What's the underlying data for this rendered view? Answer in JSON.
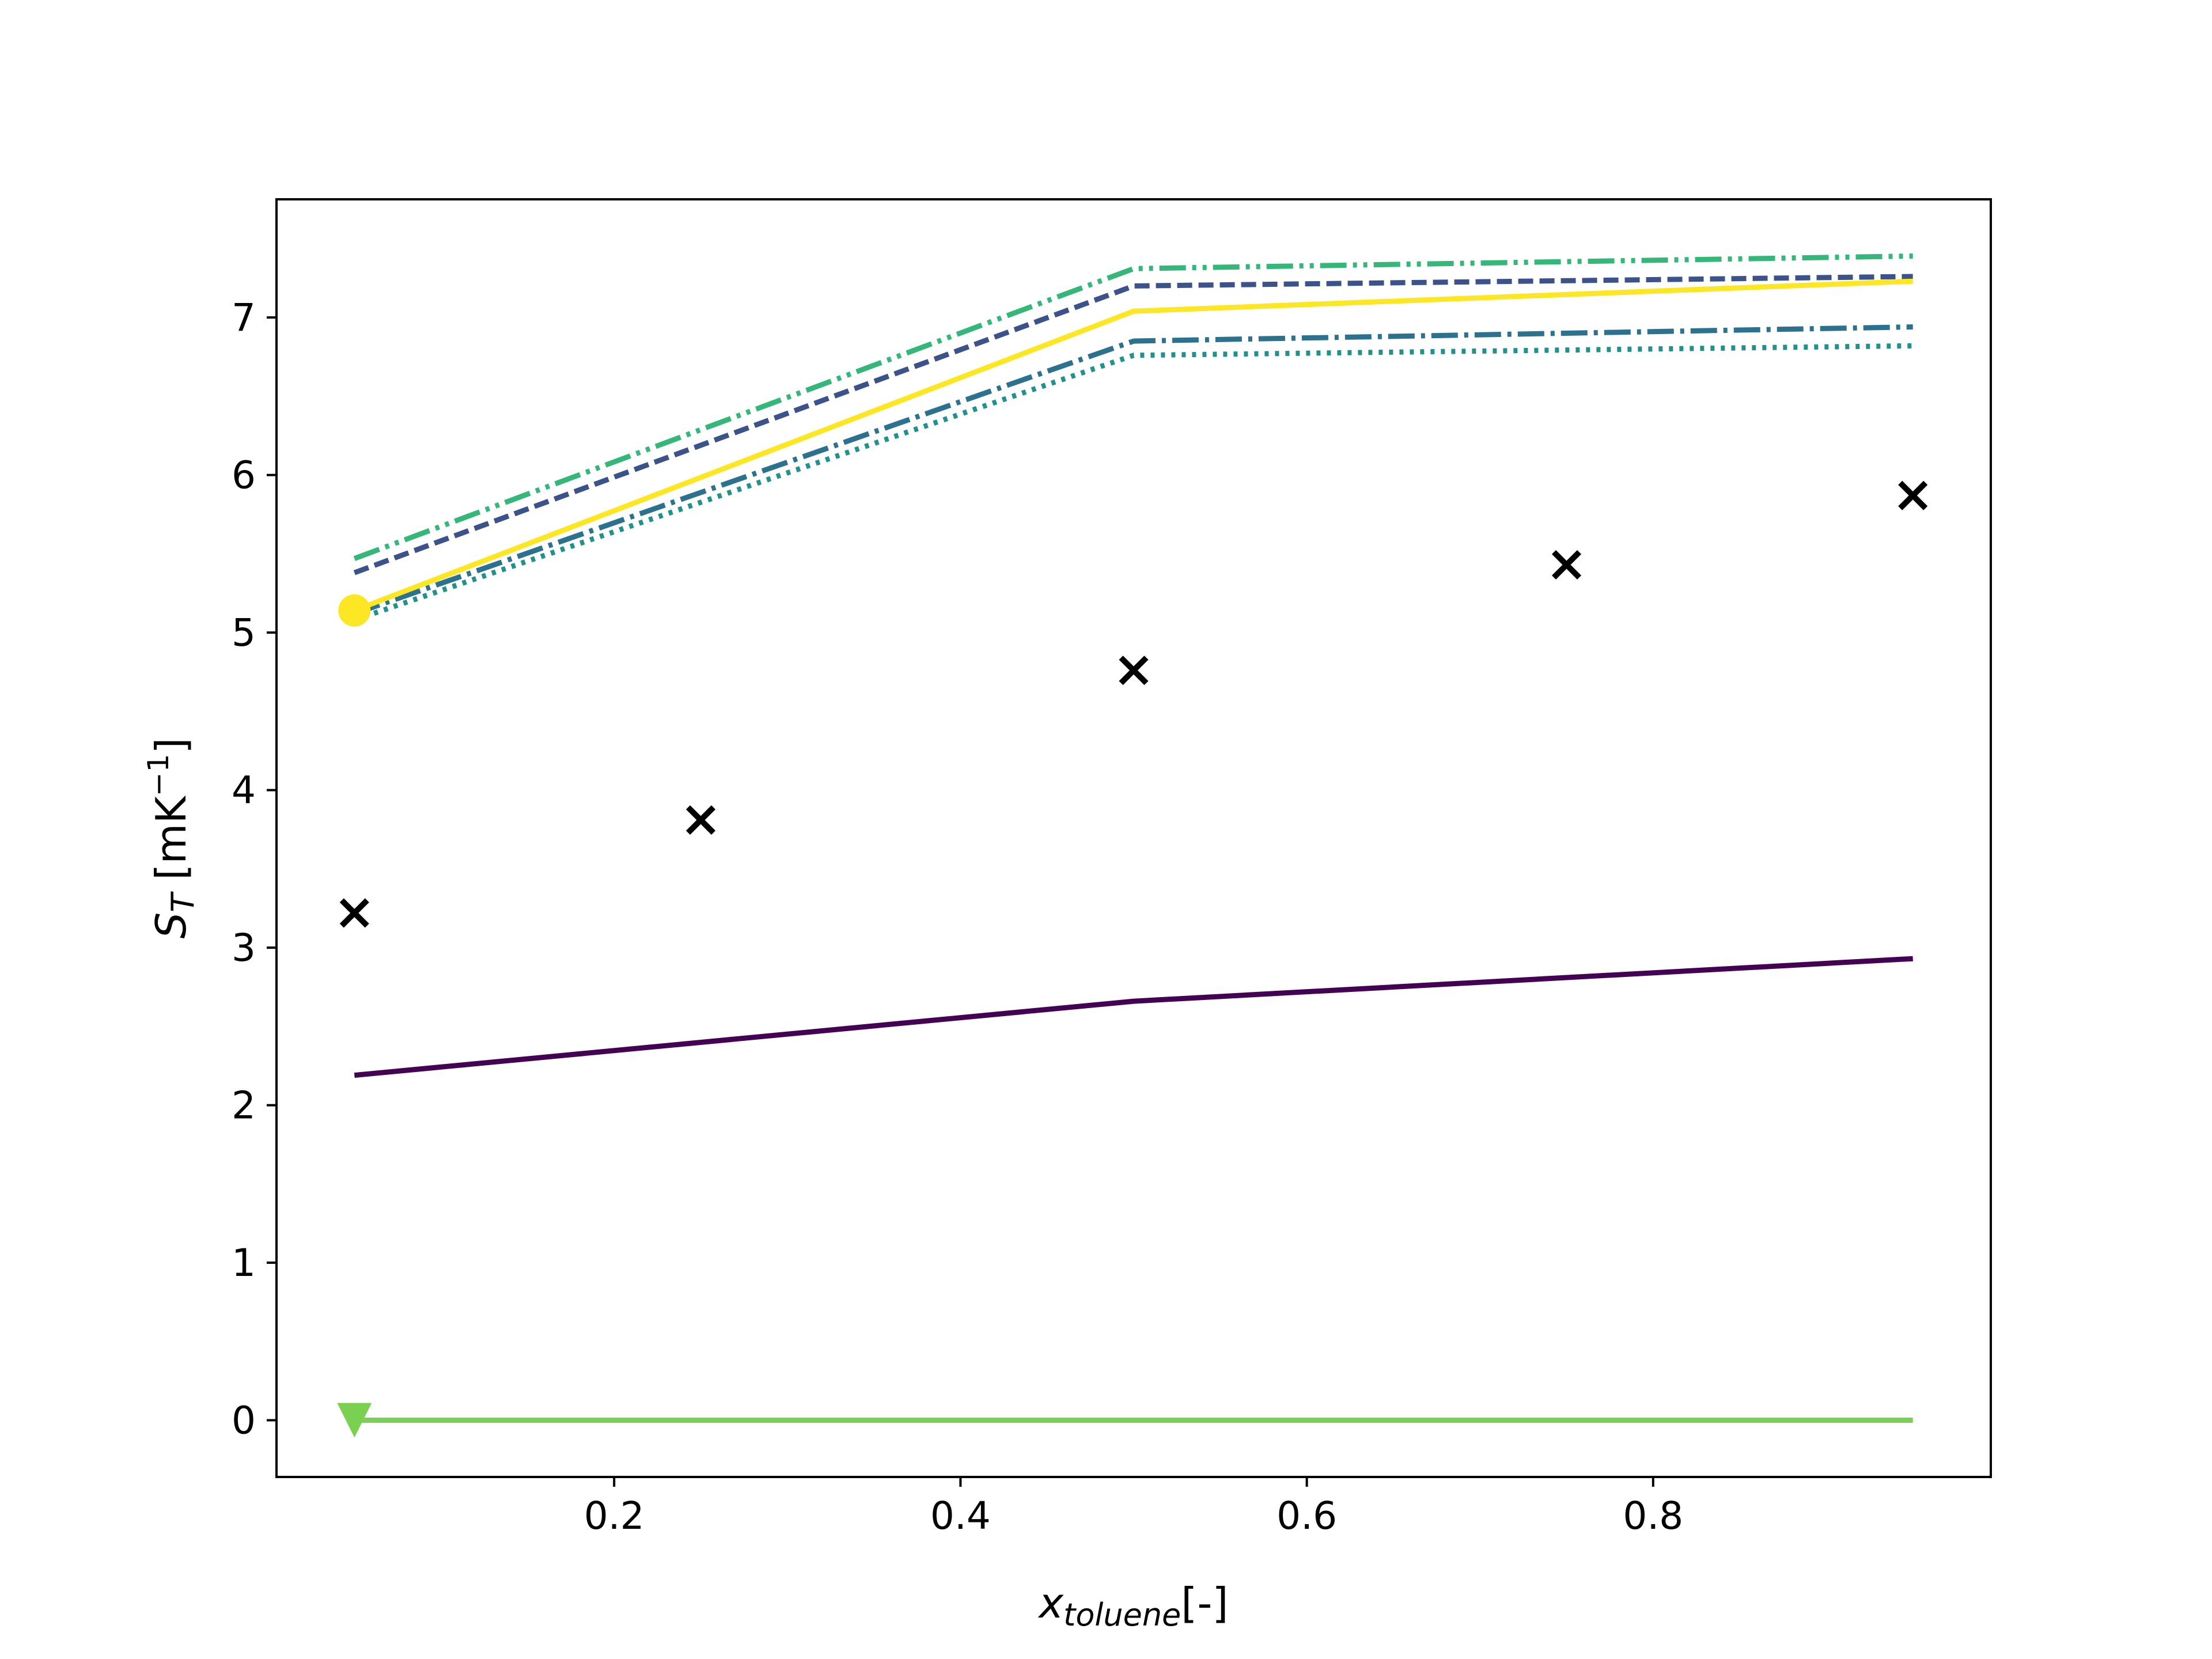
{
  "chart_data": {
    "type": "line",
    "xlim": [
      0.005,
      0.995
    ],
    "ylim": [
      -0.36,
      7.75
    ],
    "xticks": [
      0.2,
      0.4,
      0.6,
      0.8
    ],
    "xtick_labels": [
      "0.2",
      "0.4",
      "0.6",
      "0.8"
    ],
    "yticks": [
      0,
      1,
      2,
      3,
      4,
      5,
      6,
      7
    ],
    "ytick_labels": [
      "0",
      "1",
      "2",
      "3",
      "4",
      "5",
      "6",
      "7"
    ],
    "xlabel": {
      "main": "x",
      "sub": "toluene",
      "suffix": "[-]"
    },
    "ylabel": {
      "main": "S",
      "sub": "T",
      "prefix": " [mK",
      "sup": "−1",
      "suffix": "]"
    },
    "grid": false,
    "legend": null,
    "x": [
      0.05,
      0.5,
      0.95
    ],
    "series": [
      {
        "color": "#440154",
        "dash": "solid",
        "values": [
          2.19,
          2.66,
          2.93
        ]
      },
      {
        "color": "#3b528b",
        "dash": "dashed",
        "values": [
          5.38,
          7.2,
          7.26
        ]
      },
      {
        "color": "#2c728e",
        "dash": "dashdot",
        "values": [
          5.12,
          6.85,
          6.94
        ]
      },
      {
        "color": "#21918c",
        "dash": "dotted",
        "values": [
          5.08,
          6.76,
          6.82
        ]
      },
      {
        "color": "#35b779",
        "dash": "dashdotdot",
        "values": [
          5.47,
          7.31,
          7.39
        ]
      },
      {
        "color": "#7ad151",
        "dash": "solid",
        "values": [
          0.0,
          0.0,
          0.0
        ],
        "start_marker": "triangle-down"
      },
      {
        "color": "#fde725",
        "dash": "solid",
        "values": [
          5.14,
          7.04,
          7.23
        ],
        "start_marker": "circle"
      }
    ],
    "experimental": {
      "marker": "x",
      "color": "#000000",
      "x": [
        0.05,
        0.25,
        0.5,
        0.75,
        0.95
      ],
      "y": [
        3.22,
        3.81,
        4.76,
        5.43,
        5.87
      ]
    }
  }
}
